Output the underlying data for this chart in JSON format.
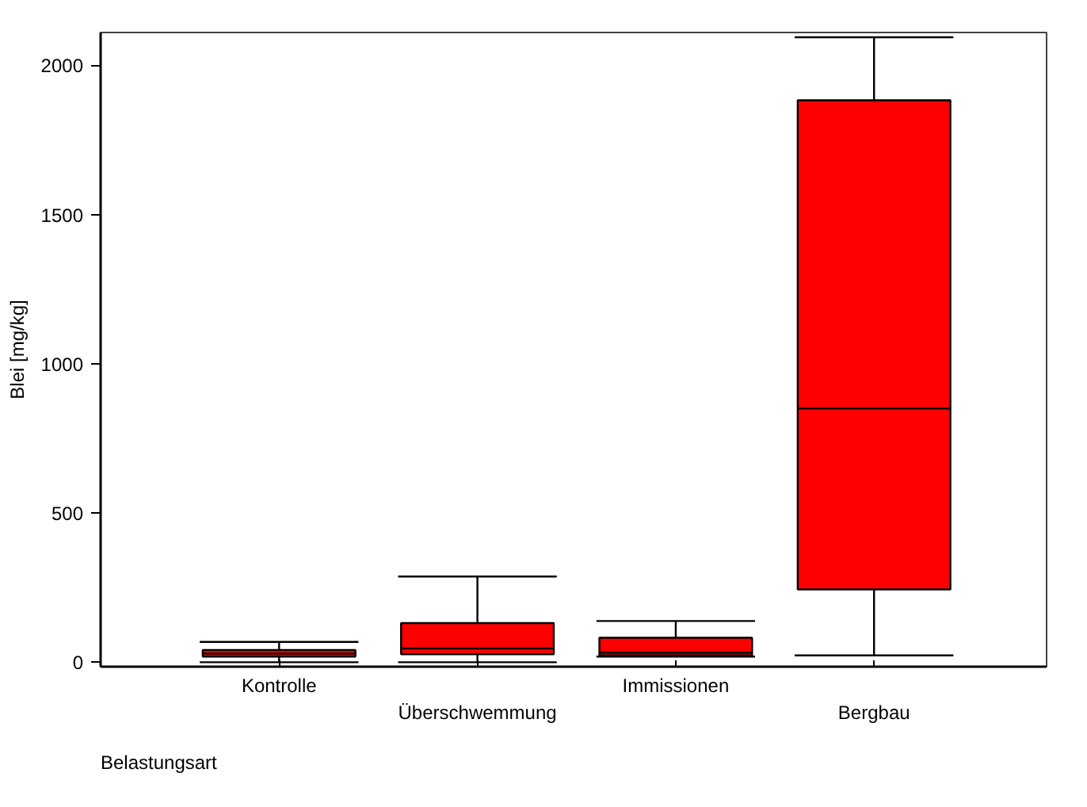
{
  "chart_data": {
    "type": "box",
    "xlabel": "Belastungsart",
    "ylabel": "Blei [mg/kg]",
    "categories": [
      "Kontrolle",
      "Überschwemmung",
      "Immissionen",
      "Bergbau"
    ],
    "color": "#ff0000",
    "boxes": [
      {
        "low": 0,
        "q1": 19,
        "median": 29,
        "q3": 41,
        "high": 68
      },
      {
        "low": 0,
        "q1": 27,
        "median": 46,
        "q3": 131,
        "high": 287
      },
      {
        "low": 19,
        "q1": 23,
        "median": 32,
        "q3": 82,
        "high": 138
      },
      {
        "low": 23,
        "q1": 244,
        "median": 850,
        "q3": 1883,
        "high": 2094
      }
    ],
    "ylim": [
      -15,
      2110
    ],
    "yticks": [
      0,
      500,
      1000,
      1500,
      2000
    ],
    "grid": false
  }
}
